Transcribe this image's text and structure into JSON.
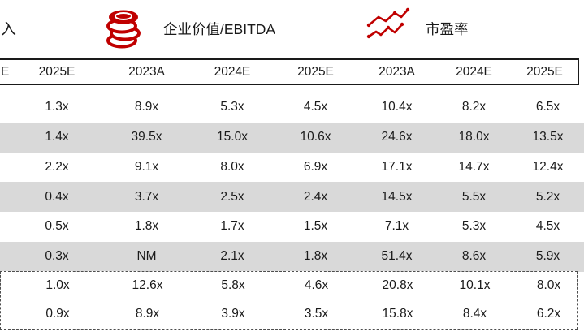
{
  "legend": {
    "revenue_partial": "入",
    "ev_ebitda_label": "企业价值/EBITDA",
    "pe_label": "市盈率",
    "icons": [
      "coins-icon",
      "trend-line-icon"
    ]
  },
  "table": {
    "columns": [
      "E",
      "2025E",
      "2023A",
      "2024E",
      "2025E",
      "2023A",
      "2024E",
      "2025E"
    ],
    "rows": [
      {
        "values": [
          "",
          "1.3x",
          "8.9x",
          "5.3x",
          "4.5x",
          "10.4x",
          "8.2x",
          "6.5x"
        ],
        "shaded": false,
        "boxed": false
      },
      {
        "values": [
          "",
          "1.4x",
          "39.5x",
          "15.0x",
          "10.6x",
          "24.6x",
          "18.0x",
          "13.5x"
        ],
        "shaded": true,
        "boxed": false
      },
      {
        "values": [
          "",
          "2.2x",
          "9.1x",
          "8.0x",
          "6.9x",
          "17.1x",
          "14.7x",
          "12.4x"
        ],
        "shaded": false,
        "boxed": false
      },
      {
        "values": [
          "",
          "0.4x",
          "3.7x",
          "2.5x",
          "2.4x",
          "14.5x",
          "5.5x",
          "5.2x"
        ],
        "shaded": true,
        "boxed": false
      },
      {
        "values": [
          "",
          "0.5x",
          "1.8x",
          "1.7x",
          "1.5x",
          "7.1x",
          "5.3x",
          "4.5x"
        ],
        "shaded": false,
        "boxed": false
      },
      {
        "values": [
          "",
          "0.3x",
          "NM",
          "2.1x",
          "1.8x",
          "51.4x",
          "8.6x",
          "5.9x"
        ],
        "shaded": true,
        "boxed": false
      },
      {
        "values": [
          "",
          "1.0x",
          "12.6x",
          "5.8x",
          "4.6x",
          "20.8x",
          "10.1x",
          "8.0x"
        ],
        "shaded": false,
        "boxed": true
      },
      {
        "values": [
          "",
          "0.9x",
          "8.9x",
          "3.9x",
          "3.5x",
          "15.8x",
          "8.4x",
          "6.2x"
        ],
        "shaded": false,
        "boxed": true
      }
    ]
  },
  "colors": {
    "accent_red": "#C00000",
    "row_shade": "#D9D9D9",
    "text": "#1A1A1A",
    "solid_border": "#1A1A1A",
    "dashed_border": "#4D4D4D"
  }
}
